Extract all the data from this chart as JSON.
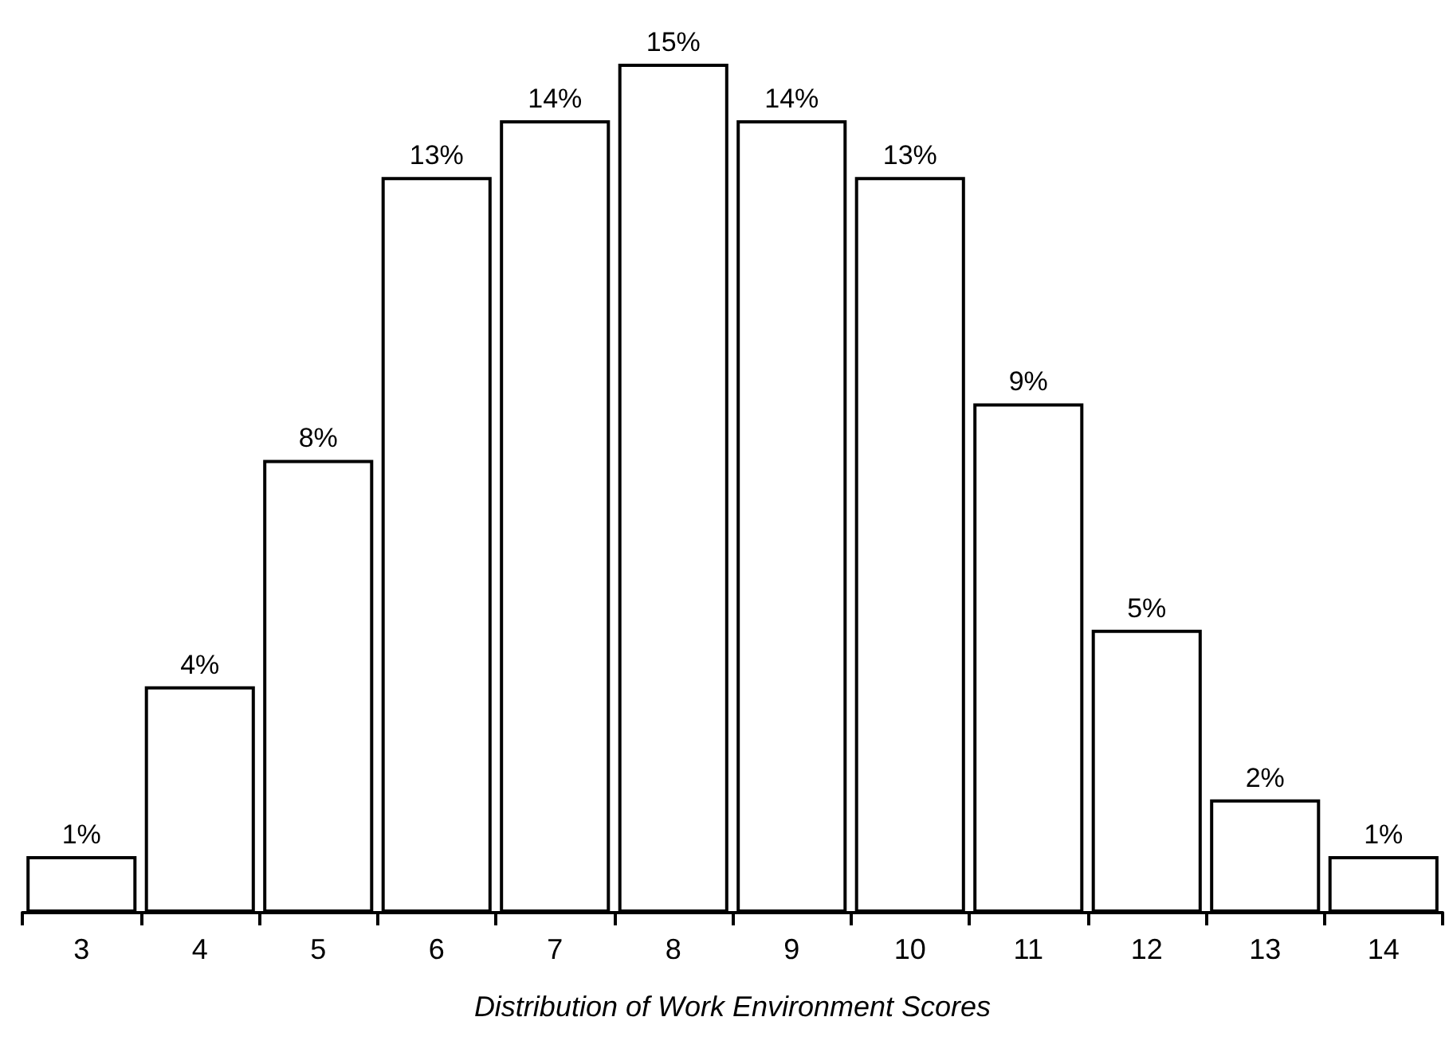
{
  "chart_data": {
    "type": "bar",
    "xlabel": "Distribution of Work Environment Scores",
    "categories": [
      "3",
      "4",
      "5",
      "6",
      "7",
      "8",
      "9",
      "10",
      "11",
      "12",
      "13",
      "14"
    ],
    "values": [
      1,
      4,
      8,
      13,
      14,
      15,
      14,
      13,
      9,
      5,
      2,
      1
    ],
    "value_labels": [
      "1%",
      "4%",
      "8%",
      "13%",
      "14%",
      "15%",
      "14%",
      "13%",
      "9%",
      "5%",
      "2%",
      "1%"
    ],
    "color": "#ffffff"
  }
}
